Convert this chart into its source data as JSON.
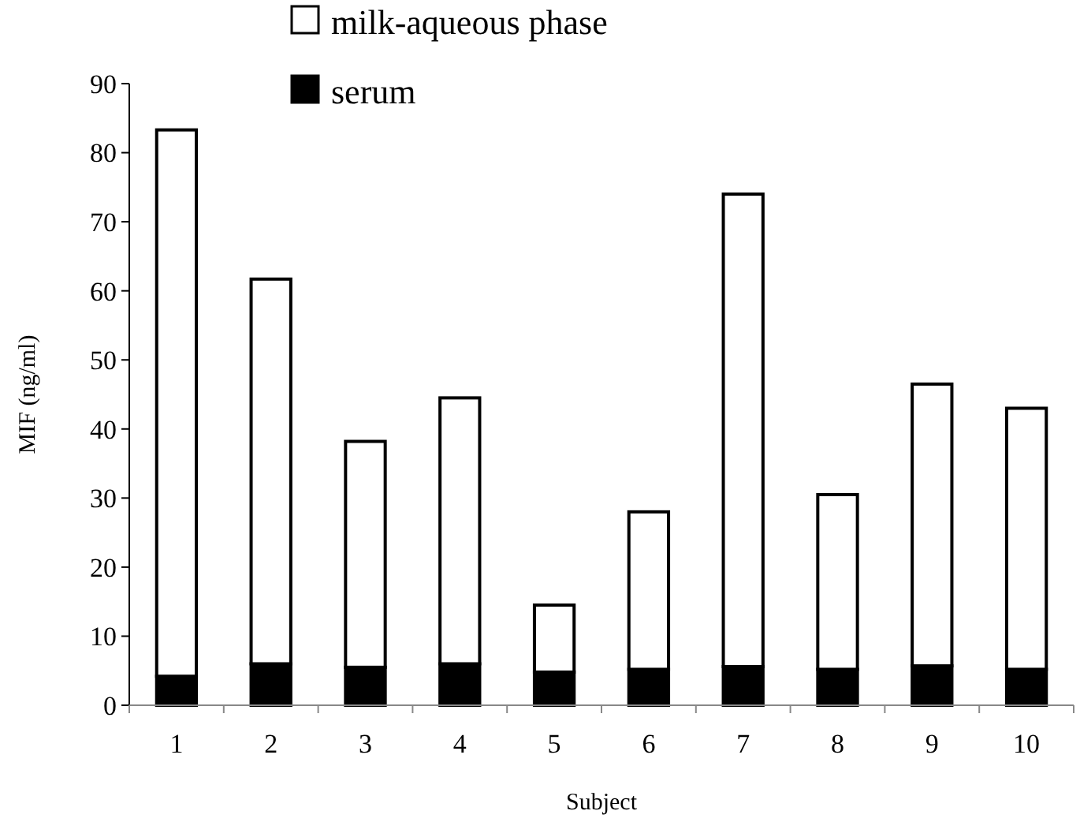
{
  "chart_data": {
    "type": "bar",
    "stacked": true,
    "xlabel": "Subject",
    "ylabel": "MIF (ng/ml)",
    "categories": [
      "1",
      "2",
      "3",
      "4",
      "5",
      "6",
      "7",
      "8",
      "9",
      "10"
    ],
    "ylim": [
      0,
      90
    ],
    "yticks": [
      0,
      10,
      20,
      30,
      40,
      50,
      60,
      70,
      80,
      90
    ],
    "grid": false,
    "legend": "top",
    "series": [
      {
        "name": "serum",
        "color": "#000000",
        "values": [
          4.2,
          6,
          5.5,
          6,
          4.8,
          5.2,
          5.6,
          5.2,
          5.7,
          5.2
        ]
      },
      {
        "name": "milk-aqueous phase",
        "color": "#ffffff",
        "values": [
          79.1,
          55.7,
          32.7,
          38.5,
          9.7,
          22.8,
          68.4,
          25.3,
          40.8,
          37.8
        ]
      }
    ]
  }
}
